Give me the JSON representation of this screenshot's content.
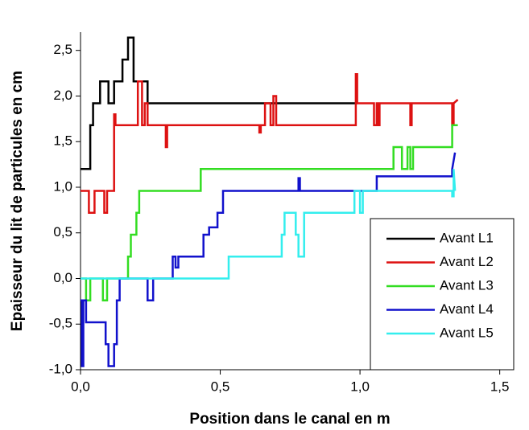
{
  "chart_data": {
    "type": "line",
    "xlabel": "Position dans le canal en m",
    "ylabel": "Epaisseur du lit de particules en cm",
    "xlim": [
      0,
      1.55
    ],
    "ylim": [
      -1,
      2.7
    ],
    "xticks": [
      {
        "value": 0,
        "label": "0,0"
      },
      {
        "value": 0.5,
        "label": "0,5"
      },
      {
        "value": 1,
        "label": "1,0"
      },
      {
        "value": 1.5,
        "label": "1,5"
      }
    ],
    "yticks": [
      {
        "value": -1,
        "label": "-1,0"
      },
      {
        "value": -0.5,
        "label": "-0,5"
      },
      {
        "value": 0,
        "label": "0,0"
      },
      {
        "value": 0.5,
        "label": "0,5"
      },
      {
        "value": 1,
        "label": "1,0"
      },
      {
        "value": 1.5,
        "label": "1,5"
      },
      {
        "value": 2,
        "label": "2,0"
      },
      {
        "value": 2.5,
        "label": "2,5"
      }
    ],
    "legend": "lower right",
    "series": [
      {
        "name": "Avant L1",
        "color": "#000000",
        "x": [
          0,
          0.035,
          0.035,
          0.045,
          0.045,
          0.07,
          0.07,
          0.1,
          0.1,
          0.12,
          0.12,
          0.15,
          0.15,
          0.17,
          0.17,
          0.19,
          0.19,
          0.24,
          0.24,
          0.99
        ],
        "values": [
          1.2,
          1.2,
          1.68,
          1.68,
          1.92,
          1.92,
          2.16,
          2.16,
          1.92,
          1.92,
          2.16,
          2.16,
          2.4,
          2.4,
          2.64,
          2.64,
          2.16,
          2.16,
          1.92,
          1.92
        ]
      },
      {
        "name": "Avant L2",
        "color": "#dd1111",
        "x": [
          0,
          0.03,
          0.03,
          0.05,
          0.05,
          0.085,
          0.085,
          0.095,
          0.095,
          0.12,
          0.12,
          0.125,
          0.125,
          0.205,
          0.205,
          0.22,
          0.22,
          0.23,
          0.23,
          0.24,
          0.24,
          0.305,
          0.305,
          0.31,
          0.31,
          0.64,
          0.64,
          0.645,
          0.645,
          0.66,
          0.66,
          0.68,
          0.68,
          0.69,
          0.69,
          0.7,
          0.7,
          0.985,
          0.985,
          0.99,
          0.99,
          1.05,
          1.05,
          1.06,
          1.06,
          1.065,
          1.065,
          1.07,
          1.07,
          1.18,
          1.18,
          1.185,
          1.185,
          1.33,
          1.33,
          1.335,
          1.335,
          1.35
        ],
        "values": [
          0.96,
          0.96,
          0.72,
          0.72,
          0.96,
          0.96,
          0.72,
          0.72,
          0.96,
          0.96,
          1.8,
          1.8,
          1.68,
          1.68,
          2.16,
          2.16,
          1.68,
          1.68,
          1.92,
          1.92,
          1.68,
          1.68,
          1.44,
          1.44,
          1.68,
          1.68,
          1.6,
          1.6,
          1.68,
          1.68,
          1.92,
          1.92,
          1.68,
          1.68,
          2.0,
          2.0,
          1.68,
          1.68,
          2.24,
          2.24,
          1.92,
          1.92,
          1.68,
          1.68,
          1.92,
          1.92,
          1.68,
          1.68,
          1.92,
          1.92,
          1.68,
          1.68,
          1.92,
          1.92,
          1.68,
          1.68,
          1.92,
          1.96
        ]
      },
      {
        "name": "Avant L3",
        "color": "#33dd22",
        "x": [
          0,
          0.02,
          0.02,
          0.035,
          0.035,
          0.08,
          0.08,
          0.095,
          0.095,
          0.17,
          0.17,
          0.18,
          0.18,
          0.2,
          0.2,
          0.21,
          0.21,
          0.43,
          0.43,
          1.12,
          1.12,
          1.15,
          1.15,
          1.17,
          1.17,
          1.18,
          1.18,
          1.19,
          1.19,
          1.33,
          1.33,
          1.35
        ],
        "values": [
          0,
          0,
          -0.24,
          -0.24,
          0,
          0,
          -0.24,
          -0.24,
          0,
          0,
          0.24,
          0.24,
          0.48,
          0.48,
          0.72,
          0.72,
          0.96,
          0.96,
          1.2,
          1.2,
          1.44,
          1.44,
          1.2,
          1.2,
          1.44,
          1.44,
          1.2,
          1.2,
          1.44,
          1.44,
          1.68,
          1.68
        ]
      },
      {
        "name": "Avant L4",
        "color": "#1111cc",
        "x": [
          0,
          0.005,
          0.005,
          0.01,
          0.01,
          0.02,
          0.02,
          0.09,
          0.09,
          0.1,
          0.1,
          0.12,
          0.12,
          0.13,
          0.13,
          0.14,
          0.14,
          0.24,
          0.24,
          0.26,
          0.26,
          0.33,
          0.33,
          0.34,
          0.34,
          0.35,
          0.35,
          0.44,
          0.44,
          0.46,
          0.46,
          0.49,
          0.49,
          0.51,
          0.51,
          0.78,
          0.78,
          0.785,
          0.785,
          1.06,
          1.06,
          1.33,
          1.33,
          1.34
        ],
        "values": [
          -0.24,
          -0.24,
          -0.96,
          -0.96,
          -0.24,
          -0.24,
          -0.48,
          -0.48,
          -0.72,
          -0.72,
          -0.96,
          -0.96,
          -0.72,
          -0.72,
          -0.24,
          -0.24,
          0,
          0,
          -0.24,
          -0.24,
          0,
          0,
          0.24,
          0.24,
          0.12,
          0.12,
          0.24,
          0.24,
          0.48,
          0.48,
          0.56,
          0.56,
          0.72,
          0.72,
          0.96,
          0.96,
          1.1,
          1.1,
          0.96,
          0.96,
          1.12,
          1.12,
          1.2,
          1.38
        ]
      },
      {
        "name": "Avant L5",
        "color": "#33eeee",
        "x": [
          0,
          0.53,
          0.53,
          0.72,
          0.72,
          0.73,
          0.73,
          0.77,
          0.77,
          0.78,
          0.78,
          0.8,
          0.8,
          0.98,
          0.98,
          1.0,
          1.0,
          1.01,
          1.01,
          1.33,
          1.33,
          1.335,
          1.335,
          1.34
        ],
        "values": [
          0,
          0,
          0.24,
          0.24,
          0.48,
          0.48,
          0.72,
          0.72,
          0.48,
          0.48,
          0.24,
          0.24,
          0.72,
          0.72,
          0.96,
          0.96,
          0.72,
          0.72,
          0.96,
          0.96,
          0.9,
          0.9,
          1.2,
          0.96
        ]
      }
    ]
  }
}
